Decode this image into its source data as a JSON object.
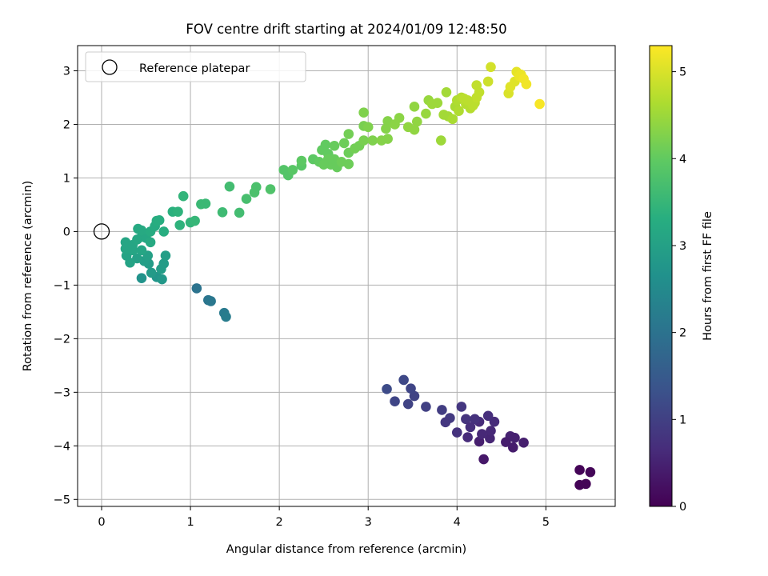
{
  "chart_data": {
    "type": "scatter",
    "title": "FOV centre drift starting at 2024/01/09 12:48:50",
    "xlabel": "Angular distance from reference (arcmin)",
    "ylabel": "Rotation from reference (arcmin)",
    "xlim": [
      -0.27,
      5.78
    ],
    "ylim": [
      -5.13,
      3.47
    ],
    "xticks": [
      0,
      1,
      2,
      3,
      4,
      5
    ],
    "yticks": [
      -5,
      -4,
      -3,
      -2,
      -1,
      0,
      1,
      2,
      3
    ],
    "grid": true,
    "legend": {
      "position": "upper-left",
      "entries": [
        {
          "label": "Reference platepar",
          "marker": "open-circle"
        }
      ]
    },
    "reference_point": {
      "x": 0,
      "y": 0
    },
    "colorbar": {
      "label": "Hours from first FF file",
      "range": [
        0,
        5.3
      ],
      "ticks": [
        0,
        1,
        2,
        3,
        4,
        5
      ],
      "colormap": "viridis"
    },
    "points": [
      {
        "x": 5.38,
        "y": -4.45,
        "c": 0.05
      },
      {
        "x": 5.5,
        "y": -4.49,
        "c": 0.07
      },
      {
        "x": 5.38,
        "y": -4.73,
        "c": 0.03
      },
      {
        "x": 5.45,
        "y": -4.71,
        "c": 0.04
      },
      {
        "x": 4.3,
        "y": -4.25,
        "c": 0.35
      },
      {
        "x": 4.63,
        "y": -4.03,
        "c": 0.4
      },
      {
        "x": 4.75,
        "y": -3.94,
        "c": 0.45
      },
      {
        "x": 4.6,
        "y": -3.82,
        "c": 0.5
      },
      {
        "x": 4.55,
        "y": -3.93,
        "c": 0.42
      },
      {
        "x": 4.65,
        "y": -3.85,
        "c": 0.48
      },
      {
        "x": 4.25,
        "y": -3.92,
        "c": 0.45
      },
      {
        "x": 4.37,
        "y": -3.86,
        "c": 0.55
      },
      {
        "x": 4.38,
        "y": -3.72,
        "c": 0.6
      },
      {
        "x": 4.42,
        "y": -3.55,
        "c": 0.65
      },
      {
        "x": 4.35,
        "y": -3.44,
        "c": 0.7
      },
      {
        "x": 4.25,
        "y": -3.55,
        "c": 0.65
      },
      {
        "x": 4.28,
        "y": -3.78,
        "c": 0.6
      },
      {
        "x": 4.2,
        "y": -3.5,
        "c": 0.75
      },
      {
        "x": 4.1,
        "y": -3.5,
        "c": 0.8
      },
      {
        "x": 4.15,
        "y": -3.65,
        "c": 0.7
      },
      {
        "x": 4.05,
        "y": -3.27,
        "c": 0.85
      },
      {
        "x": 4.0,
        "y": -3.75,
        "c": 0.75
      },
      {
        "x": 4.12,
        "y": -3.84,
        "c": 0.65
      },
      {
        "x": 3.92,
        "y": -3.48,
        "c": 0.9
      },
      {
        "x": 3.87,
        "y": -3.56,
        "c": 0.85
      },
      {
        "x": 3.83,
        "y": -3.33,
        "c": 0.95
      },
      {
        "x": 3.65,
        "y": -3.27,
        "c": 1.0
      },
      {
        "x": 3.52,
        "y": -3.07,
        "c": 1.05
      },
      {
        "x": 3.48,
        "y": -2.93,
        "c": 1.1
      },
      {
        "x": 3.4,
        "y": -2.77,
        "c": 1.15
      },
      {
        "x": 3.45,
        "y": -3.22,
        "c": 1.05
      },
      {
        "x": 3.3,
        "y": -3.17,
        "c": 1.1
      },
      {
        "x": 3.21,
        "y": -2.94,
        "c": 1.2
      },
      {
        "x": 1.07,
        "y": -1.06,
        "c": 2.0
      },
      {
        "x": 1.2,
        "y": -1.28,
        "c": 2.05
      },
      {
        "x": 1.23,
        "y": -1.3,
        "c": 2.1
      },
      {
        "x": 1.38,
        "y": -1.52,
        "c": 2.15
      },
      {
        "x": 1.4,
        "y": -1.59,
        "c": 2.2
      },
      {
        "x": 0.45,
        "y": -0.87,
        "c": 2.7
      },
      {
        "x": 0.62,
        "y": -0.85,
        "c": 2.75
      },
      {
        "x": 0.68,
        "y": -0.89,
        "c": 2.8
      },
      {
        "x": 0.56,
        "y": -0.77,
        "c": 2.85
      },
      {
        "x": 0.67,
        "y": -0.7,
        "c": 2.9
      },
      {
        "x": 0.7,
        "y": -0.6,
        "c": 2.9
      },
      {
        "x": 0.72,
        "y": -0.45,
        "c": 2.95
      },
      {
        "x": 0.53,
        "y": -0.6,
        "c": 2.9
      },
      {
        "x": 0.48,
        "y": -0.55,
        "c": 2.95
      },
      {
        "x": 0.52,
        "y": -0.45,
        "c": 3.0
      },
      {
        "x": 0.4,
        "y": -0.5,
        "c": 3.0
      },
      {
        "x": 0.32,
        "y": -0.58,
        "c": 3.05
      },
      {
        "x": 0.28,
        "y": -0.45,
        "c": 3.05
      },
      {
        "x": 0.27,
        "y": -0.32,
        "c": 3.1
      },
      {
        "x": 0.27,
        "y": -0.2,
        "c": 3.1
      },
      {
        "x": 0.35,
        "y": -0.25,
        "c": 3.1
      },
      {
        "x": 0.4,
        "y": -0.15,
        "c": 3.15
      },
      {
        "x": 0.45,
        "y": -0.1,
        "c": 3.15
      },
      {
        "x": 0.5,
        "y": -0.12,
        "c": 3.15
      },
      {
        "x": 0.55,
        "y": -0.2,
        "c": 3.2
      },
      {
        "x": 0.41,
        "y": 0.05,
        "c": 3.2
      },
      {
        "x": 0.45,
        "y": 0.02,
        "c": 3.2
      },
      {
        "x": 0.55,
        "y": 0.0,
        "c": 3.25
      },
      {
        "x": 0.6,
        "y": 0.1,
        "c": 3.25
      },
      {
        "x": 0.62,
        "y": 0.2,
        "c": 3.3
      },
      {
        "x": 0.65,
        "y": 0.21,
        "c": 3.3
      },
      {
        "x": 0.7,
        "y": 0.0,
        "c": 3.3
      },
      {
        "x": 0.35,
        "y": -0.35,
        "c": 3.1
      },
      {
        "x": 0.45,
        "y": -0.35,
        "c": 3.1
      },
      {
        "x": 0.8,
        "y": 0.37,
        "c": 3.35
      },
      {
        "x": 0.86,
        "y": 0.37,
        "c": 3.4
      },
      {
        "x": 0.88,
        "y": 0.12,
        "c": 3.4
      },
      {
        "x": 0.92,
        "y": 0.66,
        "c": 3.45
      },
      {
        "x": 1.0,
        "y": 0.17,
        "c": 3.45
      },
      {
        "x": 1.05,
        "y": 0.2,
        "c": 3.5
      },
      {
        "x": 1.12,
        "y": 0.51,
        "c": 3.55
      },
      {
        "x": 1.17,
        "y": 0.52,
        "c": 3.55
      },
      {
        "x": 1.36,
        "y": 0.36,
        "c": 3.6
      },
      {
        "x": 1.44,
        "y": 0.84,
        "c": 3.65
      },
      {
        "x": 1.55,
        "y": 0.35,
        "c": 3.65
      },
      {
        "x": 1.63,
        "y": 0.61,
        "c": 3.7
      },
      {
        "x": 1.72,
        "y": 0.73,
        "c": 3.75
      },
      {
        "x": 1.74,
        "y": 0.83,
        "c": 3.75
      },
      {
        "x": 1.9,
        "y": 0.79,
        "c": 3.8
      },
      {
        "x": 2.05,
        "y": 1.15,
        "c": 3.85
      },
      {
        "x": 2.1,
        "y": 1.05,
        "c": 3.85
      },
      {
        "x": 2.15,
        "y": 1.15,
        "c": 3.9
      },
      {
        "x": 2.25,
        "y": 1.23,
        "c": 3.9
      },
      {
        "x": 2.25,
        "y": 1.32,
        "c": 3.95
      },
      {
        "x": 2.38,
        "y": 1.35,
        "c": 3.95
      },
      {
        "x": 2.45,
        "y": 1.3,
        "c": 4.0
      },
      {
        "x": 2.48,
        "y": 1.52,
        "c": 4.0
      },
      {
        "x": 2.52,
        "y": 1.62,
        "c": 4.0
      },
      {
        "x": 2.55,
        "y": 1.45,
        "c": 4.0
      },
      {
        "x": 2.58,
        "y": 1.25,
        "c": 4.05
      },
      {
        "x": 2.62,
        "y": 1.35,
        "c": 4.05
      },
      {
        "x": 2.62,
        "y": 1.6,
        "c": 4.05
      },
      {
        "x": 2.65,
        "y": 1.2,
        "c": 4.05
      },
      {
        "x": 2.55,
        "y": 1.35,
        "c": 4.05
      },
      {
        "x": 2.5,
        "y": 1.25,
        "c": 4.05
      },
      {
        "x": 2.7,
        "y": 1.3,
        "c": 4.1
      },
      {
        "x": 2.73,
        "y": 1.65,
        "c": 4.1
      },
      {
        "x": 2.78,
        "y": 1.47,
        "c": 4.1
      },
      {
        "x": 2.78,
        "y": 1.26,
        "c": 4.1
      },
      {
        "x": 2.78,
        "y": 1.82,
        "c": 4.15
      },
      {
        "x": 2.85,
        "y": 1.55,
        "c": 4.15
      },
      {
        "x": 2.9,
        "y": 1.6,
        "c": 4.15
      },
      {
        "x": 2.95,
        "y": 1.7,
        "c": 4.2
      },
      {
        "x": 2.95,
        "y": 1.97,
        "c": 4.2
      },
      {
        "x": 2.95,
        "y": 2.22,
        "c": 4.25
      },
      {
        "x": 3.0,
        "y": 1.95,
        "c": 4.25
      },
      {
        "x": 3.05,
        "y": 1.7,
        "c": 4.25
      },
      {
        "x": 3.15,
        "y": 1.7,
        "c": 4.3
      },
      {
        "x": 3.2,
        "y": 1.92,
        "c": 4.3
      },
      {
        "x": 3.22,
        "y": 2.06,
        "c": 4.3
      },
      {
        "x": 3.22,
        "y": 1.73,
        "c": 4.3
      },
      {
        "x": 3.3,
        "y": 2.0,
        "c": 4.35
      },
      {
        "x": 3.35,
        "y": 2.12,
        "c": 4.35
      },
      {
        "x": 3.45,
        "y": 1.95,
        "c": 4.4
      },
      {
        "x": 3.52,
        "y": 1.9,
        "c": 4.4
      },
      {
        "x": 3.52,
        "y": 2.33,
        "c": 4.4
      },
      {
        "x": 3.55,
        "y": 2.05,
        "c": 4.4
      },
      {
        "x": 3.65,
        "y": 2.2,
        "c": 4.45
      },
      {
        "x": 3.68,
        "y": 2.45,
        "c": 4.45
      },
      {
        "x": 3.72,
        "y": 2.38,
        "c": 4.5
      },
      {
        "x": 3.78,
        "y": 2.4,
        "c": 4.5
      },
      {
        "x": 3.82,
        "y": 1.7,
        "c": 4.5
      },
      {
        "x": 3.85,
        "y": 2.18,
        "c": 4.55
      },
      {
        "x": 3.88,
        "y": 2.6,
        "c": 4.55
      },
      {
        "x": 3.9,
        "y": 2.15,
        "c": 4.55
      },
      {
        "x": 3.95,
        "y": 2.1,
        "c": 4.6
      },
      {
        "x": 3.98,
        "y": 2.33,
        "c": 4.6
      },
      {
        "x": 4.0,
        "y": 2.45,
        "c": 4.65
      },
      {
        "x": 4.02,
        "y": 2.25,
        "c": 4.65
      },
      {
        "x": 4.05,
        "y": 2.5,
        "c": 4.7
      },
      {
        "x": 4.1,
        "y": 2.38,
        "c": 4.7
      },
      {
        "x": 4.15,
        "y": 2.3,
        "c": 4.7
      },
      {
        "x": 4.18,
        "y": 2.35,
        "c": 4.75
      },
      {
        "x": 4.2,
        "y": 2.4,
        "c": 4.75
      },
      {
        "x": 4.22,
        "y": 2.5,
        "c": 4.8
      },
      {
        "x": 4.22,
        "y": 2.73,
        "c": 4.8
      },
      {
        "x": 4.25,
        "y": 2.6,
        "c": 4.8
      },
      {
        "x": 4.08,
        "y": 2.48,
        "c": 4.75
      },
      {
        "x": 4.12,
        "y": 2.45,
        "c": 4.75
      },
      {
        "x": 4.35,
        "y": 2.8,
        "c": 4.9
      },
      {
        "x": 4.38,
        "y": 3.07,
        "c": 4.95
      },
      {
        "x": 4.58,
        "y": 2.58,
        "c": 5.0
      },
      {
        "x": 4.6,
        "y": 2.7,
        "c": 5.05
      },
      {
        "x": 4.65,
        "y": 2.8,
        "c": 5.05
      },
      {
        "x": 4.67,
        "y": 2.98,
        "c": 5.1
      },
      {
        "x": 4.7,
        "y": 2.9,
        "c": 5.15
      },
      {
        "x": 4.72,
        "y": 2.93,
        "c": 5.15
      },
      {
        "x": 4.75,
        "y": 2.85,
        "c": 5.2
      },
      {
        "x": 4.78,
        "y": 2.75,
        "c": 5.2
      },
      {
        "x": 4.93,
        "y": 2.38,
        "c": 5.25
      }
    ]
  }
}
